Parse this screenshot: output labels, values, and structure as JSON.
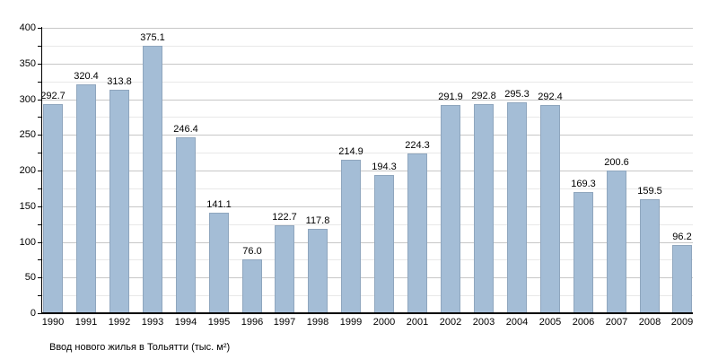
{
  "chart_data": {
    "type": "bar",
    "title": "Ввод нового жилья в Тольятти (тыс. м²)",
    "categories": [
      "1990",
      "1991",
      "1992",
      "1993",
      "1994",
      "1995",
      "1996",
      "1997",
      "1998",
      "1999",
      "2000",
      "2001",
      "2002",
      "2003",
      "2004",
      "2005",
      "2006",
      "2007",
      "2008",
      "2009"
    ],
    "values": [
      292.7,
      320.4,
      313.8,
      375.1,
      246.4,
      141.1,
      76.0,
      122.7,
      117.8,
      214.9,
      194.3,
      224.3,
      291.9,
      292.8,
      295.3,
      292.4,
      169.3,
      200.6,
      159.5,
      96.2
    ],
    "xlabel": "",
    "ylabel": "",
    "ylim": [
      0,
      400
    ],
    "ytick_step": 50,
    "grid_minor_step": 25,
    "grid": true,
    "legend_position": "none",
    "value_labels_shown": true,
    "value_label_decimals": 1,
    "colors": {
      "bar_fill": "#a4bdd6",
      "bar_edge": "#7d93ac",
      "gridline_major": "#c7c7c7",
      "gridline_minor": "#e8e8e8",
      "axis": "#000000",
      "text": "#000000",
      "background": "#ffffff"
    }
  }
}
